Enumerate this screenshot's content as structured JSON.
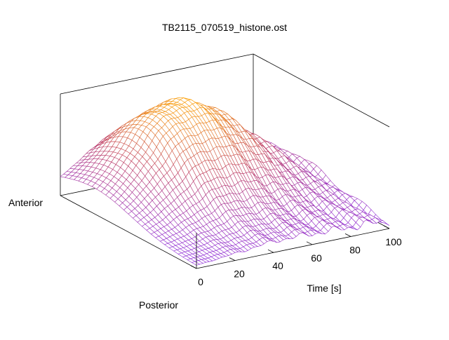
{
  "chart_data": {
    "type": "surface",
    "title": "TB2115_070519_histone.ost",
    "x_axis": {
      "label": "Time [s]",
      "range": [
        0,
        100
      ],
      "ticks": [
        "0",
        "20",
        "40",
        "60",
        "80",
        "100"
      ]
    },
    "y_axis": {
      "label_start": "Posterior",
      "label_end": "Anterior"
    },
    "z_axis": {
      "label": "",
      "range": [
        0,
        1
      ]
    },
    "grid": false,
    "colormap": [
      "#8a2be2",
      "#c04060",
      "#ffa500"
    ],
    "surface": {
      "rows": 60,
      "cols": 30,
      "peak_time": 42,
      "peak_position": 0.7,
      "peak_height": 1.0
    }
  }
}
